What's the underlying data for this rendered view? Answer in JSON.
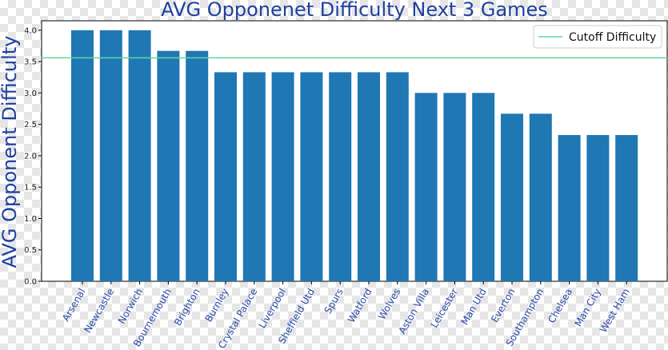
{
  "chart_data": {
    "type": "bar",
    "title": "AVG Opponenet Difficulty Next 3 Games",
    "xlabel": "",
    "ylabel": "AVG Opponent Difficulty",
    "categories": [
      "Arsenal",
      "Newcastle",
      "Norwich",
      "Bournemouth",
      "Brighton",
      "Burnley",
      "Crystal Palace",
      "Liverpool",
      "Sheffield Utd",
      "Spurs",
      "Watford",
      "Wolves",
      "Aston Villa",
      "Leicester",
      "Man Utd",
      "Everton",
      "Southampton",
      "Chelsea",
      "Man City",
      "West Ham"
    ],
    "values": [
      4.0,
      4.0,
      4.0,
      3.67,
      3.67,
      3.33,
      3.33,
      3.33,
      3.33,
      3.33,
      3.33,
      3.33,
      3.0,
      3.0,
      3.0,
      2.67,
      2.67,
      2.33,
      2.33,
      2.33
    ],
    "ylim": [
      0,
      4.15
    ],
    "yticks": [
      "0.0",
      "0.5",
      "1.0",
      "1.5",
      "2.0",
      "2.5",
      "3.0",
      "3.5",
      "4.0"
    ],
    "cutoff": {
      "name": "Cutoff Difficulty",
      "value": 3.56
    },
    "legend_position": "upper right",
    "grid": false,
    "colors": {
      "bar": "#1f77b4",
      "cutoff": "#5fd99a",
      "title": "#1f3f9f"
    }
  }
}
